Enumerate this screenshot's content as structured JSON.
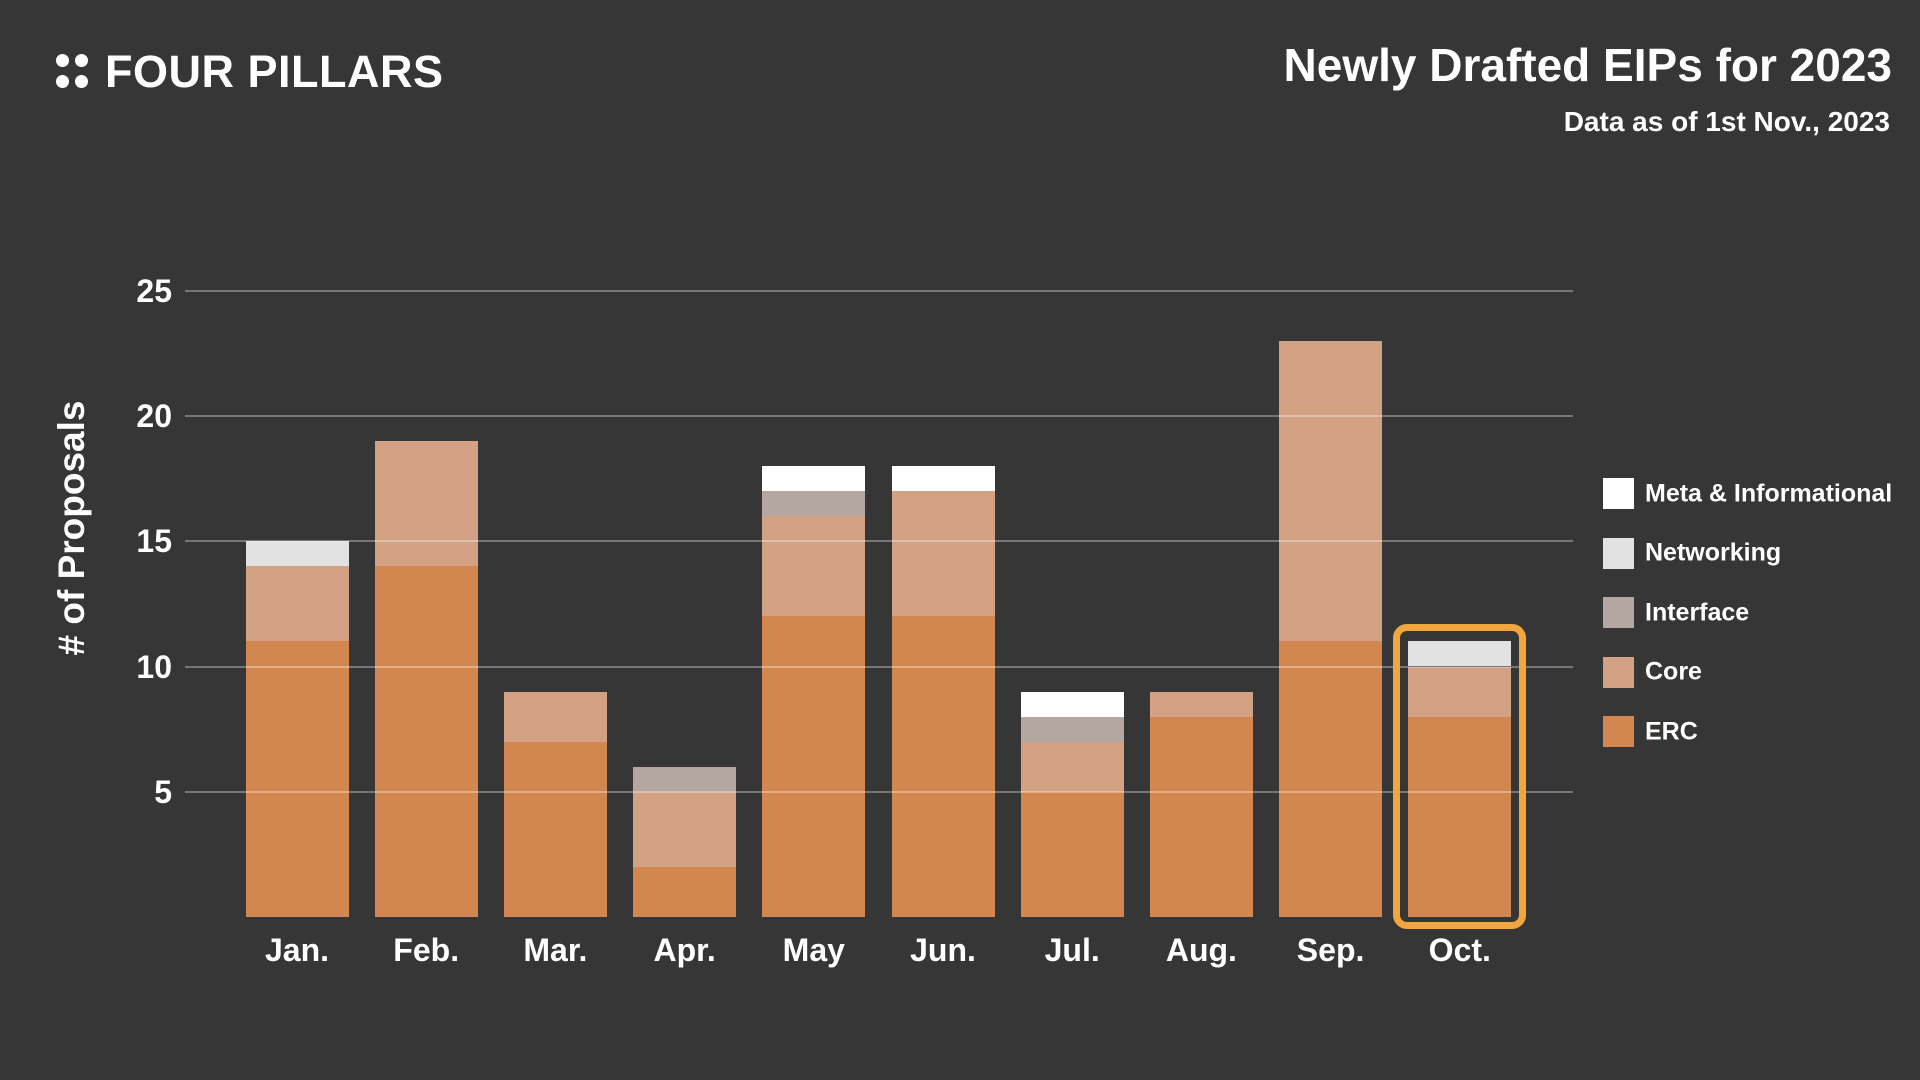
{
  "brand": {
    "name": "FOUR PILLARS"
  },
  "header": {
    "title": "Newly Drafted EIPs for 2023",
    "subtitle": "Data as of 1st Nov., 2023"
  },
  "chart_data": {
    "type": "bar",
    "stacked": true,
    "title": "Newly Drafted EIPs for 2023",
    "subtitle": "Data as of 1st Nov., 2023",
    "xlabel": "",
    "ylabel": "# of Proposals",
    "categories": [
      "Jan.",
      "Feb.",
      "Mar.",
      "Apr.",
      "May",
      "Jun.",
      "Jul.",
      "Aug.",
      "Sep.",
      "Oct."
    ],
    "series": [
      {
        "name": "ERC",
        "color": "#D28750",
        "values": [
          11,
          14,
          7,
          2,
          12,
          12,
          5,
          8,
          11,
          8
        ]
      },
      {
        "name": "Core",
        "color": "#D3A284",
        "values": [
          3,
          5,
          2,
          3,
          4,
          5,
          2,
          1,
          12,
          2
        ]
      },
      {
        "name": "Interface",
        "color": "#B4A7A2",
        "values": [
          0,
          0,
          0,
          1,
          1,
          0,
          1,
          0,
          0,
          0
        ]
      },
      {
        "name": "Networking",
        "color": "#E2E2E2",
        "values": [
          1,
          0,
          0,
          0,
          0,
          0,
          0,
          0,
          0,
          1
        ]
      },
      {
        "name": "Meta & Informational",
        "color": "#FFFFFF",
        "values": [
          0,
          0,
          0,
          0,
          1,
          1,
          1,
          0,
          0,
          0
        ]
      }
    ],
    "totals": [
      15,
      19,
      9,
      6,
      18,
      18,
      9,
      9,
      23,
      11
    ],
    "yticks": [
      5,
      10,
      15,
      20,
      25
    ],
    "ylim": [
      0,
      27
    ],
    "grid": true,
    "legend_position": "right",
    "legend_order": [
      "Meta & Informational",
      "Networking",
      "Interface",
      "Core",
      "ERC"
    ],
    "highlight": {
      "category": "Oct.",
      "color": "#F2A73E"
    },
    "colors": {
      "background": "#363636",
      "gridline": "rgba(255,255,255,0.32)",
      "text": "#FFFFFF",
      "highlight": "#F2A73E"
    }
  }
}
